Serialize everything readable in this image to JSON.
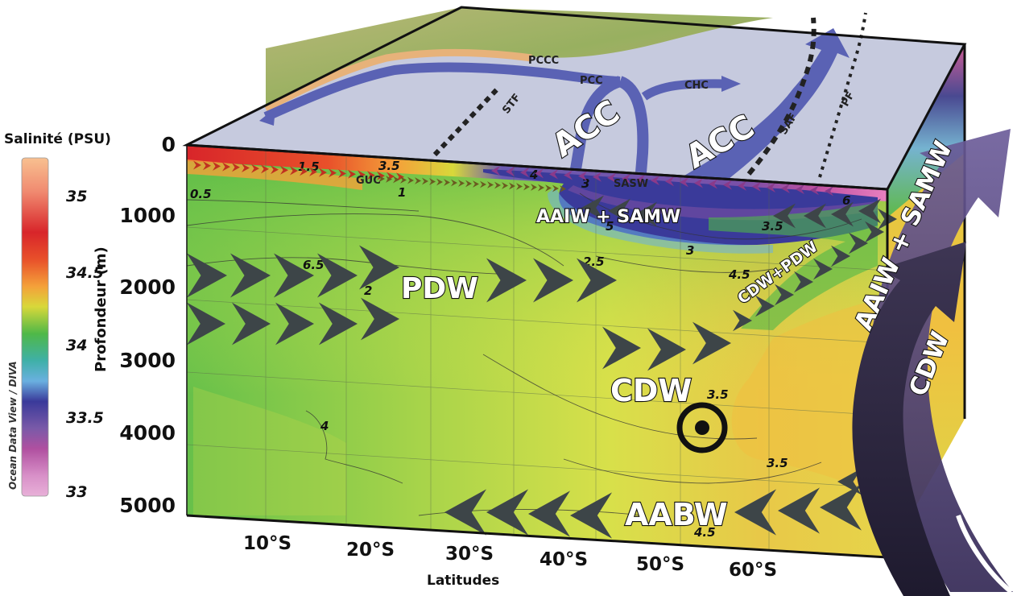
{
  "scale": {
    "title": "Salinité (PSU)",
    "credit": "Ocean Data View / DIVA",
    "ticks": [
      "35",
      "34.5",
      "34",
      "33.5",
      "33"
    ]
  },
  "axes": {
    "ylabel": "Profondeur (m)",
    "xlabel": "Latitudes",
    "depths": [
      "0",
      "1000",
      "2000",
      "3000",
      "4000",
      "5000"
    ],
    "latitudes": [
      "10°S",
      "20°S",
      "30°S",
      "40°S",
      "50°S",
      "60°S"
    ]
  },
  "surface_labels": {
    "pccc": "PCCC",
    "pcc": "PCC",
    "chc": "CHC",
    "stf": "STF",
    "saf": "SAF",
    "pf": "PF",
    "acc_1": "ACC",
    "acc_2": "ACC"
  },
  "water_masses": {
    "guc": "GUC",
    "sasw": "SASW",
    "aaiw_samw": "AAIW + SAMW",
    "pdw": "PDW",
    "cdw_pdw": "CDW+PDW",
    "cdw": "CDW",
    "aabw": "AABW"
  },
  "side_arrows": {
    "aaiw_samw": "AAIW + SAMW",
    "cdw": "CDW"
  },
  "isolines": [
    "0.5",
    "1.5",
    "3.5",
    "1",
    "3",
    "4",
    "3.5",
    "6",
    "6.5",
    "2",
    "2.5",
    "3",
    "4.5",
    "4",
    "3.5",
    "3.5",
    "4.5",
    "5"
  ],
  "colors": {
    "salty": "#d8252a",
    "orange": "#f4a13a",
    "green": "#4fb848",
    "yellow": "#d8e44a",
    "fresh": "#3a3a9a",
    "arrow": "#3d4548",
    "current": "#5a62b4",
    "sea": "#c8cce0",
    "land": "#a8b870"
  }
}
